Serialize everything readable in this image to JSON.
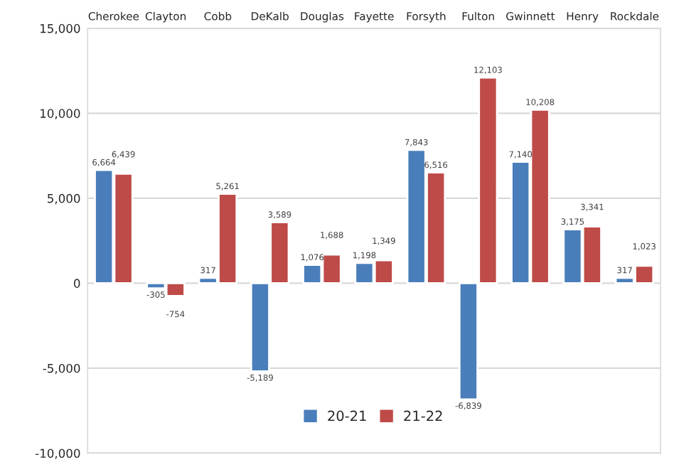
{
  "chart_data": {
    "type": "bar",
    "categories": [
      "Cherokee",
      "Clayton",
      "Cobb",
      "DeKalb",
      "Douglas",
      "Fayette",
      "Forsyth",
      "Fulton",
      "Gwinnett",
      "Henry",
      "Rockdale"
    ],
    "series": [
      {
        "name": "20-21",
        "color": "#4a7ebb",
        "values": [
          6664,
          -305,
          317,
          -5189,
          1076,
          1198,
          7843,
          -6839,
          7140,
          3175,
          317
        ],
        "value_labels": [
          "6,664",
          "-305",
          "317",
          "-5,189",
          "1,076",
          "1,198",
          "7,843",
          "-6,839",
          "7,140",
          "3,175",
          "317"
        ]
      },
      {
        "name": "21-22",
        "color": "#be4b48",
        "values": [
          6439,
          -754,
          5261,
          3589,
          1688,
          1349,
          6516,
          12103,
          10208,
          3341,
          1023
        ],
        "value_labels": [
          "6,439",
          "-754",
          "5,261",
          "3,589",
          "1,688",
          "1,349",
          "6,516",
          "12,103",
          "10,208",
          "3,341",
          "1,023"
        ]
      }
    ],
    "ylim": [
      -10000,
      15000
    ],
    "yticks": [
      {
        "value": -10000,
        "label": "-10,000"
      },
      {
        "value": -5000,
        "label": "-5,000"
      },
      0,
      {
        "value": 5000,
        "label": "5,000"
      },
      {
        "value": 10000,
        "label": "10,000"
      },
      {
        "value": 15000,
        "label": "15,000"
      }
    ],
    "grid": "y",
    "legend": "bottom"
  }
}
